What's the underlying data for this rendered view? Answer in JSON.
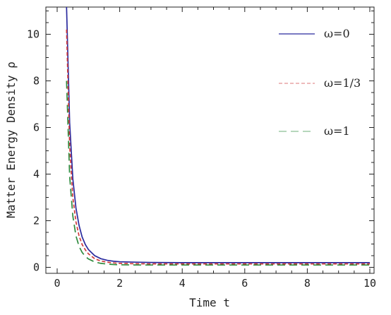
{
  "chart_data": {
    "type": "line",
    "xlabel": "Time t",
    "ylabel": "Matter Energy Density ρ",
    "xlim": [
      0,
      10
    ],
    "ylim": [
      0,
      11.2
    ],
    "xticks": [
      "0",
      "2",
      "4",
      "6",
      "8",
      "10"
    ],
    "yticks": [
      "0",
      "2",
      "4",
      "6",
      "8",
      "10"
    ],
    "grid": false,
    "legend_position": "right",
    "x": [
      0.3,
      0.4,
      0.5,
      0.6,
      0.7,
      0.8,
      0.9,
      1.0,
      1.2,
      1.4,
      1.6,
      1.8,
      2.0,
      2.5,
      3.0,
      4.0,
      5.0,
      6.0,
      7.0,
      8.0,
      9.0,
      10.0
    ],
    "series": [
      {
        "name": "ω=0",
        "color": "#2a2a9e",
        "dash": "solid",
        "values": [
          11.2,
          6.2,
          3.8,
          2.55,
          1.8,
          1.3,
          0.98,
          0.76,
          0.5,
          0.37,
          0.3,
          0.26,
          0.24,
          0.22,
          0.21,
          0.2,
          0.2,
          0.2,
          0.2,
          0.2,
          0.2,
          0.2
        ]
      },
      {
        "name": "ω=1/3",
        "color": "#d0393b",
        "dash": "short-dash",
        "values": [
          10.2,
          5.2,
          3.0,
          1.95,
          1.35,
          0.98,
          0.75,
          0.58,
          0.37,
          0.27,
          0.22,
          0.19,
          0.17,
          0.155,
          0.15,
          0.15,
          0.15,
          0.15,
          0.15,
          0.15,
          0.15,
          0.15
        ]
      },
      {
        "name": "ω=1",
        "color": "#2e8b3e",
        "dash": "long-dash",
        "values": [
          8.0,
          3.9,
          2.2,
          1.35,
          0.9,
          0.64,
          0.47,
          0.36,
          0.23,
          0.17,
          0.14,
          0.12,
          0.11,
          0.1,
          0.1,
          0.1,
          0.1,
          0.1,
          0.1,
          0.1,
          0.1,
          0.1
        ]
      }
    ]
  }
}
